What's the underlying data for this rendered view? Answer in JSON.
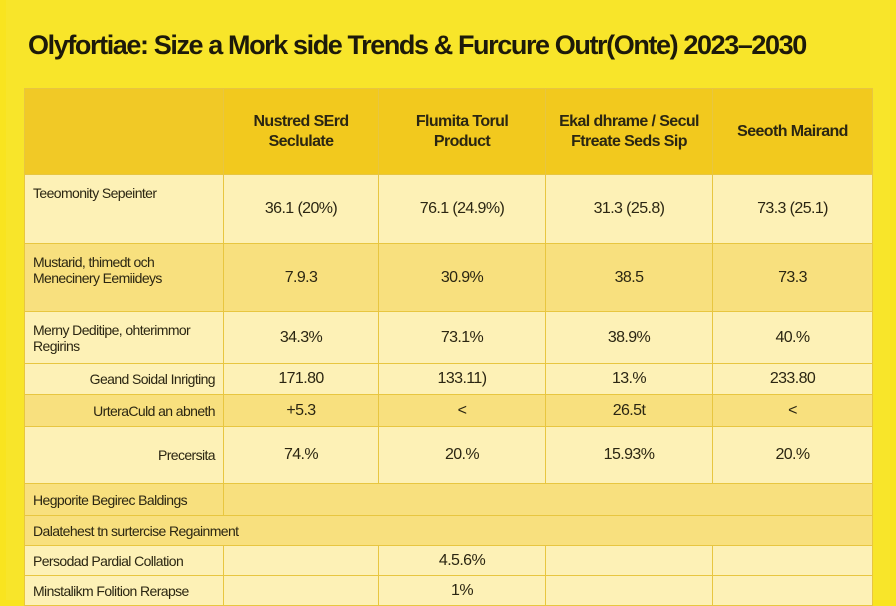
{
  "title": "Olyfortiae: Size a Mork side Trends & Furcure Outr(Onte) 2023–2030",
  "colors": {
    "background": "#f9e41f",
    "header": "#f2c91e",
    "row_light": "#fdf1b6",
    "row_dark": "#f8e07e"
  },
  "headers": [
    "",
    "Nustred SErd Seclulate",
    "Flumita Torul Product",
    "Ekal dhrame / Secul Ftreate Seds Sip",
    "Seeoth Mairand"
  ],
  "rows": [
    {
      "label": "Teeomonity Sepeinter",
      "values": [
        "36.1 (20%)",
        "76.1 (24.9%)",
        "31.3 (25.8)",
        "73.3 (25.1)"
      ]
    },
    {
      "label": "Mustarid, thimedt och Menecinery Eemiideys",
      "values": [
        "7.9.3",
        "30.9%",
        "38.5",
        "73.3"
      ]
    },
    {
      "label": "Merny Deditipe, ohterimmor Regirins",
      "values": [
        "34.3%",
        "73.1%",
        "38.9%",
        "40.%"
      ]
    },
    {
      "label": "Geand Soidal Inrigting",
      "values": [
        "171.80",
        "133.11)",
        "13.%",
        "233.80"
      ]
    },
    {
      "label": "UrteraCuld an abneth",
      "values": [
        "+5.3",
        "<",
        "26.5t",
        "<"
      ]
    },
    {
      "label": "Precersita",
      "values": [
        "74.%",
        "20.%",
        "15.93%",
        "20.%"
      ]
    },
    {
      "label": "Hegporite Begirec Baldings",
      "values": []
    },
    {
      "label": "Dalatehest tn surtercise Regainment",
      "values": []
    },
    {
      "label": "Persodad Pardial Collation",
      "values": [
        "",
        "4.5.6%",
        "",
        ""
      ]
    },
    {
      "label": "Minstalikm Folition Rerapse",
      "values": [
        "",
        "1%",
        "",
        ""
      ]
    }
  ]
}
